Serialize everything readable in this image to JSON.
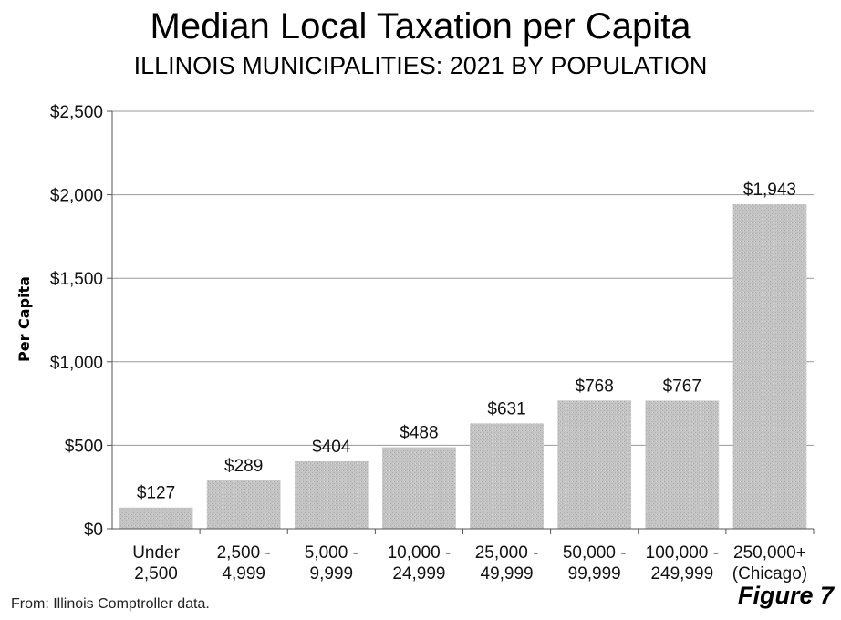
{
  "chart_data": {
    "type": "bar",
    "title": "Median Local Taxation per Capita",
    "subtitle": "ILLINOIS MUNICIPALITIES: 2021 BY POPULATION",
    "ylabel": "Per Capita",
    "xlabel": "",
    "categories": [
      [
        "Under",
        "2,500"
      ],
      [
        "2,500 -",
        "4,999"
      ],
      [
        "5,000 -",
        "9,999"
      ],
      [
        "10,000 -",
        "24,999"
      ],
      [
        "25,000 -",
        "49,999"
      ],
      [
        "50,000 -",
        "99,999"
      ],
      [
        "100,000 -",
        "249,999"
      ],
      [
        "250,000+",
        "(Chicago)"
      ]
    ],
    "values": [
      127,
      289,
      404,
      488,
      631,
      768,
      767,
      1943
    ],
    "value_labels": [
      "$127",
      "$289",
      "$404",
      "$488",
      "$631",
      "$768",
      "$767",
      "$1,943"
    ],
    "ylim": [
      0,
      2500
    ],
    "yticks": [
      0,
      500,
      1000,
      1500,
      2000,
      2500
    ],
    "ytick_labels": [
      "$0",
      "$500",
      "$1,000",
      "$1,500",
      "$2,000",
      "$2,500"
    ],
    "grid": true,
    "legend": "none",
    "bar_color": "#c4c4c4"
  },
  "footer": {
    "source": "From: Illinois Comptroller data.",
    "figure": "Figure 7"
  }
}
